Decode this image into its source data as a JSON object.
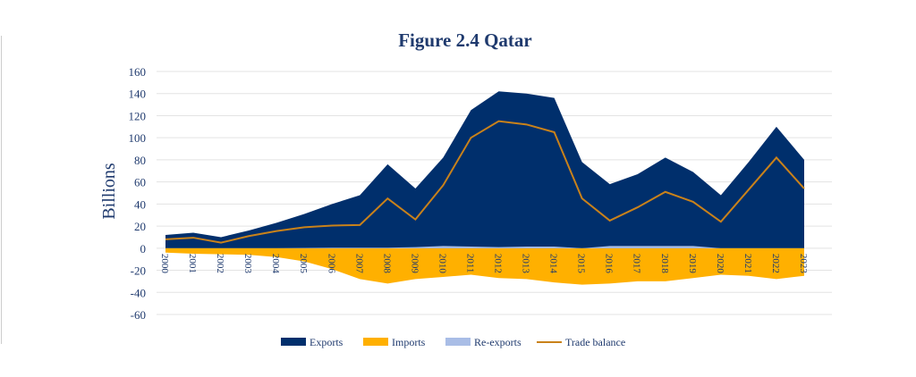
{
  "chart_data": {
    "type": "area",
    "title": "Figure 2.4 Qatar",
    "xlabel": "",
    "ylabel": "Billions",
    "ylim": [
      -60,
      160
    ],
    "yticks": [
      160,
      140,
      120,
      100,
      80,
      60,
      40,
      20,
      0,
      -20,
      -40,
      -60
    ],
    "grid": true,
    "legend_position": "bottom",
    "categories": [
      "2000",
      "2001",
      "2002",
      "2003",
      "2004",
      "2005",
      "2006",
      "2007",
      "2008",
      "2009",
      "2010",
      "2011",
      "2012",
      "2013",
      "2014",
      "2015",
      "2016",
      "2017",
      "2018",
      "2019",
      "2020",
      "2021",
      "2022",
      "2023"
    ],
    "series": [
      {
        "name": "Exports",
        "kind": "area",
        "color": "#002f6c",
        "values": [
          12,
          14,
          10,
          16,
          23,
          31,
          40,
          48,
          76,
          54,
          82,
          125,
          142,
          140,
          136,
          78,
          58,
          67,
          82,
          69,
          48,
          78,
          110,
          80
        ]
      },
      {
        "name": "Imports",
        "kind": "area",
        "color": "#ffb000",
        "values": [
          -4,
          -5,
          -5.5,
          -6,
          -8,
          -12,
          -19,
          -28,
          -32,
          -28,
          -26,
          -24,
          -27,
          -28,
          -31,
          -33,
          -32,
          -30,
          -30,
          -27,
          -24,
          -25,
          -28,
          -25
        ]
      },
      {
        "name": "Re-exports",
        "kind": "area",
        "color": "#a9bde6",
        "values": [
          0,
          0,
          0,
          0,
          0,
          0.3,
          0.5,
          0.5,
          0.5,
          1,
          2,
          1.5,
          1,
          1.5,
          1.5,
          0,
          2,
          2,
          2,
          2,
          0,
          0,
          0,
          0
        ]
      },
      {
        "name": "Trade balance",
        "kind": "line",
        "color": "#c9821a",
        "values": [
          8,
          9.5,
          5,
          11,
          15.5,
          19,
          20.5,
          21,
          45,
          26,
          57,
          100,
          115,
          112,
          105,
          45,
          25,
          37,
          51,
          42,
          24,
          53,
          82,
          54
        ]
      }
    ]
  }
}
